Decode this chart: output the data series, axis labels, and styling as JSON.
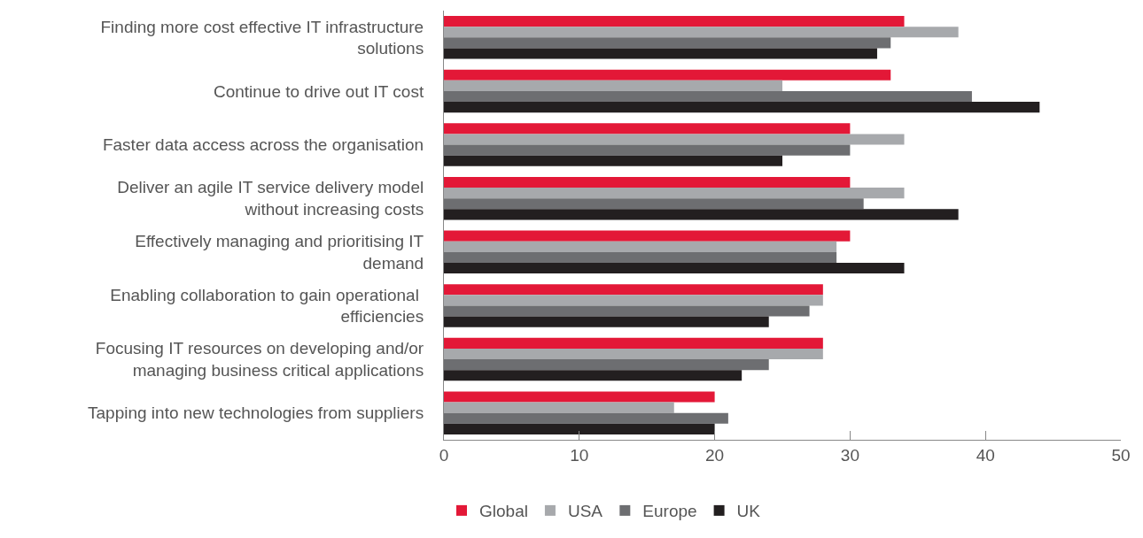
{
  "chart_data": {
    "type": "bar",
    "orientation": "horizontal",
    "categories": [
      "Finding more cost effective IT infrastructure\nsolutions",
      "Continue to drive out IT cost",
      "Faster data access across the organisation",
      "Deliver an agile IT service delivery model\nwithout increasing costs",
      "Effectively managing and prioritising IT\ndemand",
      "Enabling collaboration to gain operational \nefficiencies",
      "Focusing IT resources on developing and/or\nmanaging business critical applications",
      "Tapping into new technologies from suppliers"
    ],
    "series": [
      {
        "name": "Global",
        "color": "#e31837",
        "values": [
          34,
          33,
          30,
          30,
          30,
          28,
          28,
          20
        ]
      },
      {
        "name": "USA",
        "color": "#a7a9ac",
        "values": [
          38,
          25,
          34,
          34,
          29,
          28,
          28,
          17
        ]
      },
      {
        "name": "Europe",
        "color": "#6d6e71",
        "values": [
          33,
          39,
          30,
          31,
          29,
          27,
          24,
          21
        ]
      },
      {
        "name": "UK",
        "color": "#231f20",
        "values": [
          32,
          44,
          25,
          38,
          34,
          24,
          22,
          20
        ]
      }
    ],
    "xlim": [
      0,
      50
    ],
    "xticks": [
      0,
      10,
      20,
      30,
      40,
      50
    ],
    "legend": "bottom"
  }
}
